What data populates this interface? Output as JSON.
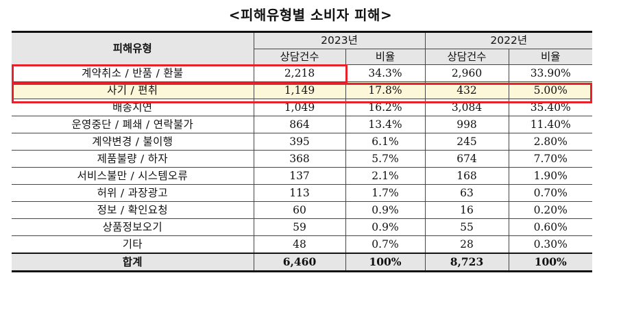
{
  "title": "<피해유형별 소비자 피해>",
  "header": {
    "type_label": "피해유형",
    "year_a": "2023년",
    "year_b": "2022년",
    "count_label": "상담건수",
    "ratio_label": "비율"
  },
  "rows": [
    {
      "type": "계약취소 / 반품 / 환불",
      "c23": "2,218",
      "r23": "34.3%",
      "c22": "2,960",
      "r22": "33.90%"
    },
    {
      "type": "사기 / 편취",
      "c23": "1,149",
      "r23": "17.8%",
      "c22": "432",
      "r22": "5.00%"
    },
    {
      "type": "배송지연",
      "c23": "1,049",
      "r23": "16.2%",
      "c22": "3,084",
      "r22": "35.40%"
    },
    {
      "type": "운영중단 / 폐쇄 / 연락불가",
      "c23": "864",
      "r23": "13.4%",
      "c22": "998",
      "r22": "11.40%"
    },
    {
      "type": "계약변경 / 불이행",
      "c23": "395",
      "r23": "6.1%",
      "c22": "245",
      "r22": "2.80%"
    },
    {
      "type": "제품불량 / 하자",
      "c23": "368",
      "r23": "5.7%",
      "c22": "674",
      "r22": "7.70%"
    },
    {
      "type": "서비스불만 / 시스템오류",
      "c23": "137",
      "r23": "2.1%",
      "c22": "168",
      "r22": "1.90%"
    },
    {
      "type": "허위 / 과장광고",
      "c23": "113",
      "r23": "1.7%",
      "c22": "63",
      "r22": "0.70%"
    },
    {
      "type": "정보 / 확인요청",
      "c23": "60",
      "r23": "0.9%",
      "c22": "16",
      "r22": "0.20%"
    },
    {
      "type": "상품정보오기",
      "c23": "59",
      "r23": "0.9%",
      "c22": "55",
      "r22": "0.60%"
    },
    {
      "type": "기타",
      "c23": "48",
      "r23": "0.7%",
      "c22": "28",
      "r22": "0.30%"
    }
  ],
  "total": {
    "type": "합계",
    "c23": "6,460",
    "r23": "100%",
    "c22": "8,723",
    "r22": "100%"
  },
  "colors": {
    "highlight_border": "#e8202a",
    "highlight_fill": "#fdf7da",
    "header_fill": "#e6e6e6"
  }
}
